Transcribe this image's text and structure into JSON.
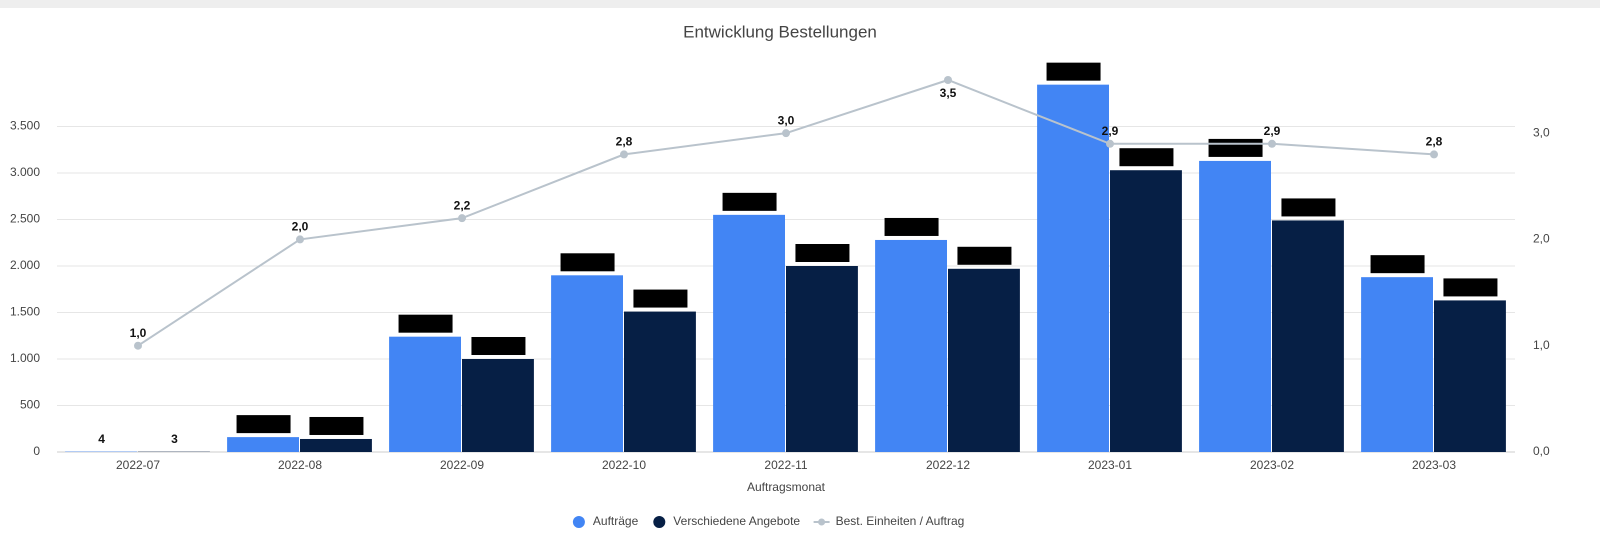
{
  "chart_data": {
    "type": "bar",
    "title": "Entwicklung Bestellungen",
    "x_label": "Auftragsmonat",
    "categories": [
      "2022-07",
      "2022-08",
      "2022-09",
      "2022-10",
      "2022-11",
      "2022-12",
      "2023-01",
      "2023-02",
      "2023-03"
    ],
    "series": [
      {
        "name": "Aufträge",
        "type": "bar",
        "color": "#4285f4",
        "values": [
          4,
          160,
          1240,
          1900,
          2550,
          2280,
          3950,
          3130,
          1880
        ]
      },
      {
        "name": "Verschiedene Angebote",
        "type": "bar",
        "color": "#061f45",
        "values": [
          3,
          140,
          1000,
          1510,
          2000,
          1970,
          3030,
          2490,
          1630
        ]
      },
      {
        "name": "Best. Einheiten / Auftrag",
        "type": "line",
        "axis": "y2",
        "color": "#b9c3cc",
        "values": [
          1.0,
          2.0,
          2.2,
          2.8,
          3.0,
          3.5,
          2.9,
          2.9,
          2.8
        ],
        "value_labels": [
          "1,0",
          "2,0",
          "2,2",
          "2,8",
          "3,0",
          "3,5",
          "2,9",
          "2,9",
          "2,8"
        ]
      }
    ],
    "ylim": [
      0,
      4000
    ],
    "yticks": [
      0,
      500,
      {
        "value": 1000,
        "label": "1.000"
      },
      {
        "value": 1500,
        "label": "1.500"
      },
      {
        "value": 2000,
        "label": "2.000"
      },
      {
        "value": 2500,
        "label": "2.500"
      },
      {
        "value": 3000,
        "label": "3.000"
      },
      {
        "value": 3500,
        "label": "3.500"
      }
    ],
    "y2lim": [
      0,
      3.5
    ],
    "y2ticks": [
      {
        "value": 0,
        "label": "0,0"
      },
      {
        "value": 1,
        "label": "1,0"
      },
      {
        "value": 2,
        "label": "2,0"
      },
      {
        "value": 3,
        "label": "3,0"
      }
    ],
    "grid": true,
    "legend": "bottom"
  }
}
